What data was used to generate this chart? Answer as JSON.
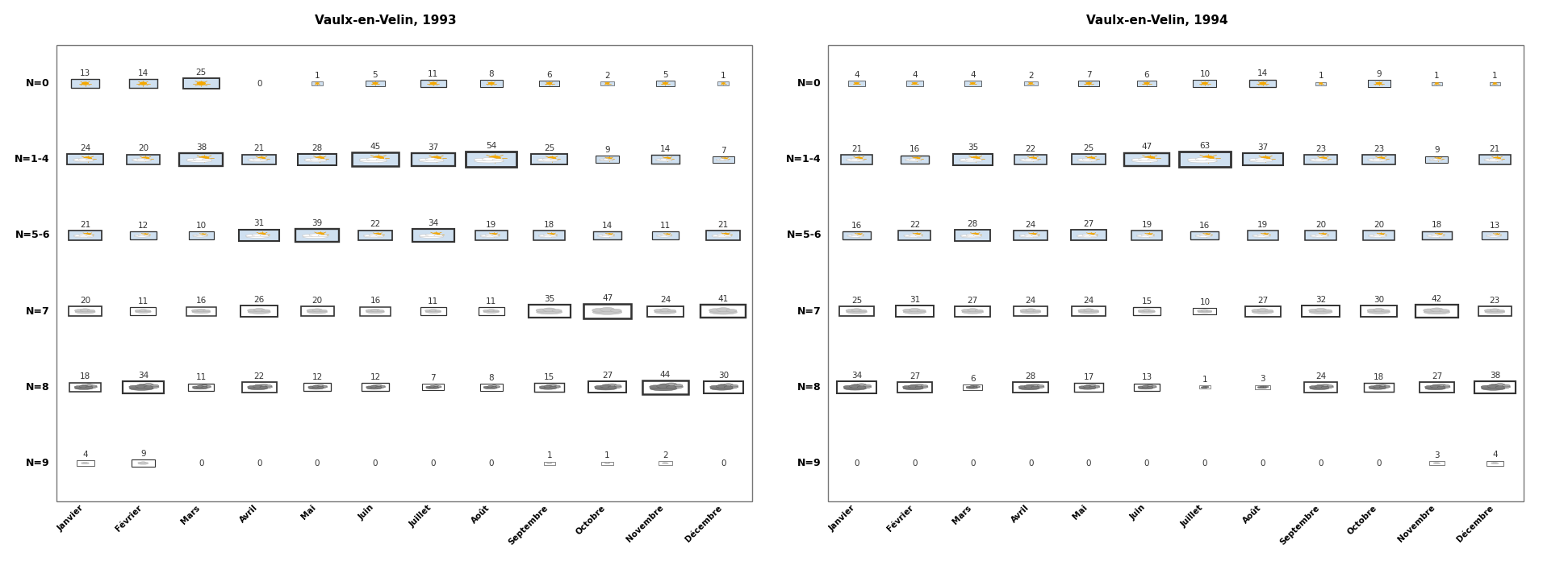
{
  "title_1993": "Vaulx-en-Velin, 1993",
  "title_1994": "Vaulx-en-Velin, 1994",
  "months": [
    "Janvier",
    "Février",
    "Mars",
    "Avril",
    "Mai",
    "Juin",
    "Juillet",
    "Août",
    "Septembre",
    "Octobre",
    "Novembre",
    "Décembre"
  ],
  "row_labels": [
    "N=0",
    "N=1-4",
    "N=5-6",
    "N=7",
    "N=8",
    "N=9"
  ],
  "data_1993": {
    "N=0": [
      13,
      14,
      25,
      0,
      1,
      5,
      11,
      8,
      6,
      2,
      5,
      1
    ],
    "N=1-4": [
      24,
      20,
      38,
      21,
      28,
      45,
      37,
      54,
      25,
      9,
      14,
      7
    ],
    "N=5-6": [
      21,
      12,
      10,
      31,
      39,
      22,
      34,
      19,
      18,
      14,
      11,
      21
    ],
    "N=7": [
      20,
      11,
      16,
      26,
      20,
      16,
      11,
      11,
      35,
      47,
      24,
      41
    ],
    "N=8": [
      18,
      34,
      11,
      22,
      12,
      12,
      7,
      8,
      15,
      27,
      44,
      30
    ],
    "N=9": [
      4,
      9,
      0,
      0,
      0,
      0,
      0,
      0,
      1,
      1,
      2,
      0
    ]
  },
  "data_1994": {
    "N=0": [
      4,
      4,
      4,
      2,
      7,
      6,
      10,
      14,
      1,
      9,
      1,
      1
    ],
    "N=1-4": [
      21,
      16,
      35,
      22,
      25,
      47,
      63,
      37,
      23,
      23,
      9,
      21
    ],
    "N=5-6": [
      16,
      22,
      28,
      24,
      27,
      19,
      16,
      19,
      20,
      20,
      18,
      13
    ],
    "N=7": [
      25,
      31,
      27,
      24,
      24,
      15,
      10,
      27,
      32,
      30,
      42,
      23
    ],
    "N=8": [
      34,
      27,
      6,
      28,
      17,
      13,
      1,
      3,
      24,
      18,
      27,
      38
    ],
    "N=9": [
      0,
      0,
      0,
      0,
      0,
      0,
      0,
      0,
      0,
      0,
      3,
      4
    ]
  },
  "bg_color": "#ffffff",
  "box_bg_sun": "#cfe0f0",
  "box_bg_white": "#ffffff",
  "sun_color": "#F5A800",
  "sun_ray_color": "#E89800",
  "cloud_light": "#c8c8c8",
  "cloud_dark": "#808080",
  "cloud_edge_light": "#aaaaaa",
  "cloud_edge_dark": "#555555",
  "text_color": "#333333",
  "border_color": "#888888"
}
